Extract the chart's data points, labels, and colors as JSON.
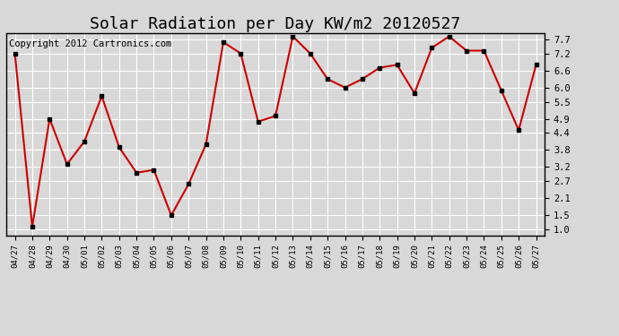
{
  "title": "Solar Radiation per Day KW/m2 20120527",
  "copyright": "Copyright 2012 Cartronics.com",
  "x_labels": [
    "04/27",
    "04/28",
    "04/29",
    "04/30",
    "05/01",
    "05/02",
    "05/03",
    "05/04",
    "05/05",
    "05/06",
    "05/07",
    "05/08",
    "05/09",
    "05/10",
    "05/11",
    "05/12",
    "05/13",
    "05/14",
    "05/15",
    "05/16",
    "05/17",
    "05/18",
    "05/19",
    "05/20",
    "05/21",
    "05/22",
    "05/23",
    "05/24",
    "05/25",
    "05/26",
    "05/27"
  ],
  "y_values": [
    7.2,
    1.1,
    4.9,
    3.3,
    4.1,
    5.7,
    3.9,
    3.0,
    3.1,
    1.5,
    2.6,
    4.0,
    7.6,
    7.2,
    4.8,
    5.0,
    7.8,
    7.2,
    6.3,
    6.0,
    6.3,
    6.7,
    6.8,
    5.8,
    7.4,
    7.8,
    7.3,
    7.3,
    5.9,
    4.5,
    6.8
  ],
  "y_ticks": [
    1.0,
    1.5,
    2.1,
    2.7,
    3.2,
    3.8,
    4.4,
    4.9,
    5.5,
    6.0,
    6.6,
    7.2,
    7.7
  ],
  "y_min": 0.8,
  "y_max": 7.9,
  "line_color": "#cc0000",
  "marker_color": "#000000",
  "bg_color": "#d8d8d8",
  "plot_bg_color": "#d8d8d8",
  "grid_color": "#ffffff",
  "title_fontsize": 13,
  "copyright_fontsize": 7.5
}
